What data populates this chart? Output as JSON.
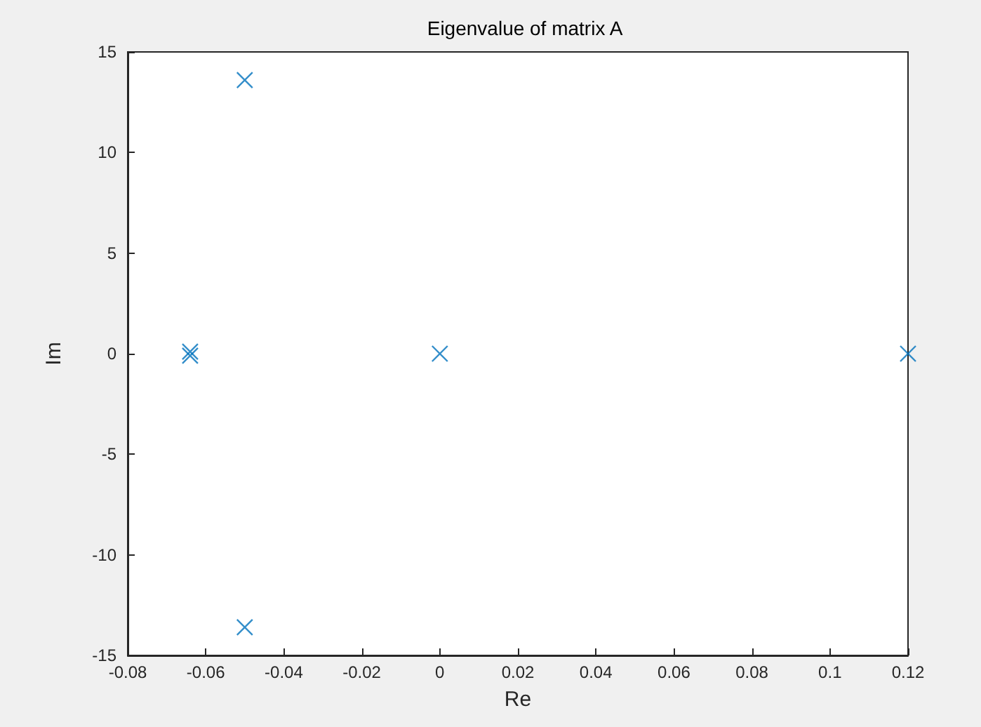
{
  "chart_data": {
    "type": "scatter",
    "title": "Eigenvalue of matrix A",
    "xlabel": "Re",
    "ylabel": "Im",
    "x": [
      -0.05,
      -0.05,
      -0.064,
      -0.064,
      0,
      0.12
    ],
    "series": [
      {
        "color": "#0072bd",
        "values": [
          13.6,
          -13.6,
          0.1,
          -0.1,
          0,
          0
        ]
      }
    ],
    "xlim": [
      -0.08,
      0.12
    ],
    "xticks": [
      -0.08,
      -0.06,
      -0.04,
      -0.02,
      0,
      0.02,
      0.04,
      0.06,
      0.08,
      0.1,
      0.12
    ],
    "ylim": [
      -15,
      15
    ],
    "yticks": [
      -15,
      -10,
      -5,
      0,
      5,
      10,
      15
    ],
    "grid": false,
    "marker": "cross"
  }
}
